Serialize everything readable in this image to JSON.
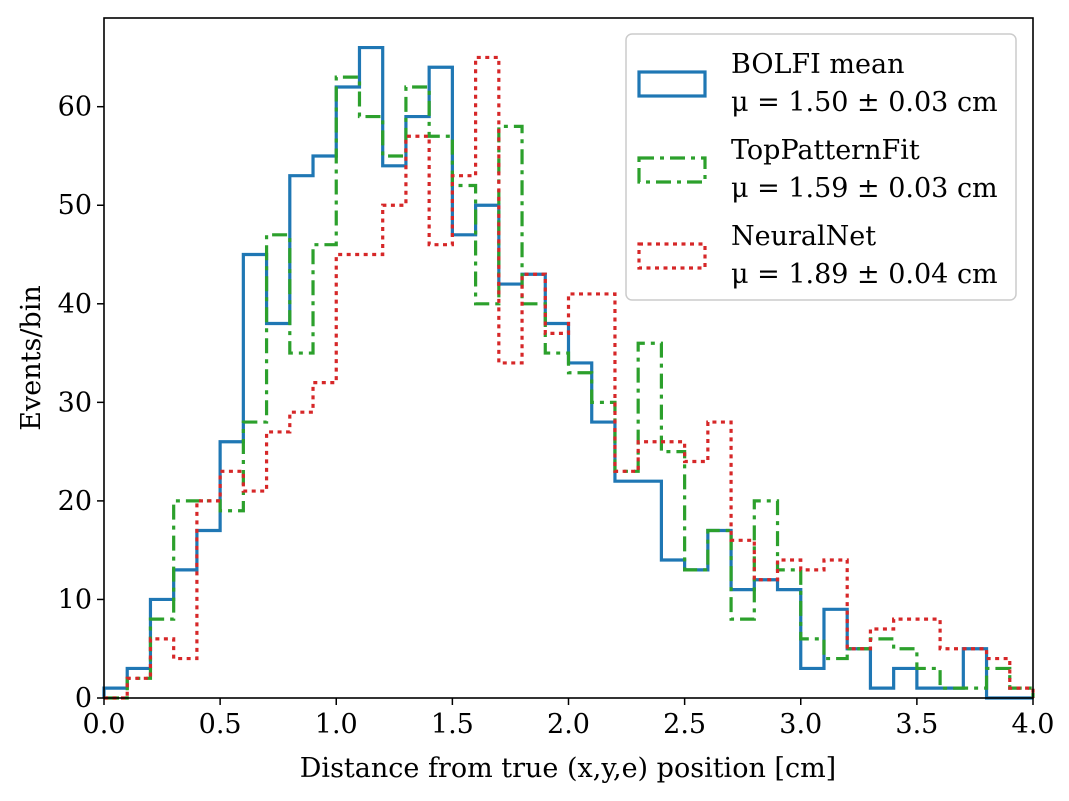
{
  "chart_data": {
    "type": "histogram",
    "title": "",
    "xlabel": "Distance from true (x,y,e) position [cm]",
    "ylabel": "Events/bin",
    "xlim": [
      0,
      4.0
    ],
    "ylim": [
      0,
      69
    ],
    "bin_width": 0.1,
    "bin_edges": [
      0.0,
      0.1,
      0.2,
      0.3,
      0.4,
      0.5,
      0.6,
      0.7,
      0.8,
      0.9,
      1.0,
      1.1,
      1.2,
      1.3,
      1.4,
      1.5,
      1.6,
      1.7,
      1.8,
      1.9,
      2.0,
      2.1,
      2.2,
      2.3,
      2.4,
      2.5,
      2.6,
      2.7,
      2.8,
      2.9,
      3.0,
      3.1,
      3.2,
      3.3,
      3.4,
      3.5,
      3.6,
      3.7,
      3.8,
      3.9,
      4.0
    ],
    "x_ticks": [
      0.0,
      0.5,
      1.0,
      1.5,
      2.0,
      2.5,
      3.0,
      3.5,
      4.0
    ],
    "x_tick_labels": [
      "0.0",
      "0.5",
      "1.0",
      "1.5",
      "2.0",
      "2.5",
      "3.0",
      "3.5",
      "4.0"
    ],
    "y_ticks": [
      0,
      10,
      20,
      30,
      40,
      50,
      60
    ],
    "y_tick_labels": [
      "0",
      "10",
      "20",
      "30",
      "40",
      "50",
      "60"
    ],
    "legend_position": "top-right",
    "series": [
      {
        "name": "BOLFI mean",
        "stat": "μ = 1.50 ± 0.03 cm",
        "color": "#1f77b4",
        "dash": "solid",
        "values": [
          1,
          3,
          10,
          13,
          17,
          26,
          45,
          38,
          53,
          55,
          62,
          66,
          54,
          59,
          64,
          47,
          50,
          42,
          43,
          38,
          34,
          28,
          22,
          22,
          14,
          13,
          17,
          11,
          12,
          11,
          3,
          9,
          5,
          1,
          3,
          1,
          1,
          5,
          0,
          0
        ]
      },
      {
        "name": "TopPatternFit",
        "stat": "μ = 1.59 ± 0.03 cm",
        "color": "#2ca02c",
        "dash": "dashdot",
        "values": [
          0,
          2,
          8,
          20,
          20,
          19,
          28,
          47,
          35,
          46,
          63,
          59,
          55,
          62,
          57,
          52,
          40,
          58,
          40,
          35,
          33,
          30,
          23,
          36,
          25,
          13,
          17,
          8,
          20,
          13,
          6,
          4,
          5,
          6,
          5,
          3,
          1,
          1,
          3,
          1
        ]
      },
      {
        "name": "NeuralNet",
        "stat": "μ = 1.89 ± 0.04 cm",
        "color": "#d62728",
        "dash": "dotted",
        "values": [
          0,
          2,
          6,
          4,
          20,
          23,
          21,
          27,
          29,
          32,
          45,
          45,
          50,
          57,
          46,
          53,
          65,
          34,
          43,
          37,
          41,
          41,
          23,
          26,
          26,
          24,
          28,
          16,
          12,
          14,
          13,
          14,
          5,
          7,
          8,
          8,
          5,
          5,
          4,
          1
        ]
      }
    ]
  }
}
